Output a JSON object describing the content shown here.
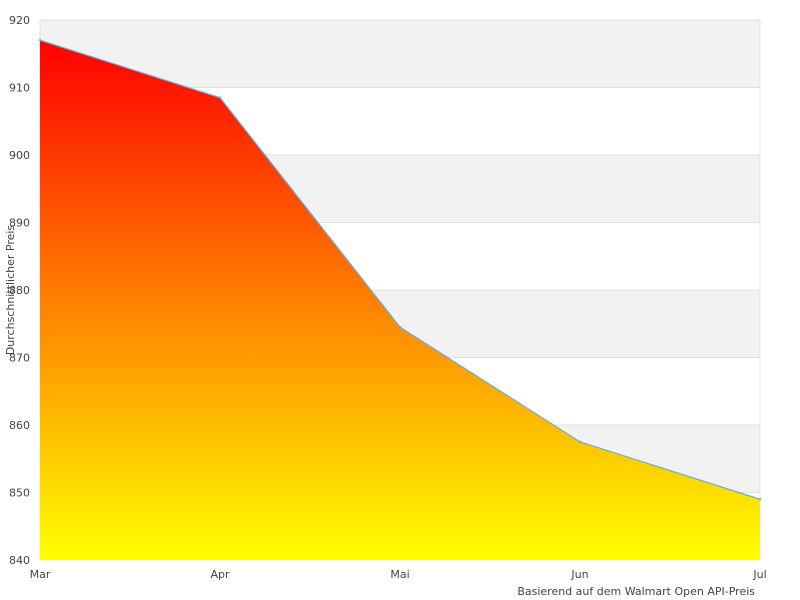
{
  "chart_data": {
    "type": "area",
    "x": [
      "Mar",
      "Apr",
      "Mai",
      "Jun",
      "Jul"
    ],
    "series": [
      {
        "values": [
          917,
          908.5,
          874.5,
          857.5,
          849
        ]
      }
    ],
    "title": "",
    "xlabel": "",
    "ylabel": "Durchschnittlicher Preis",
    "ylim": [
      840,
      920
    ],
    "yticks": [
      840,
      850,
      860,
      870,
      880,
      890,
      900,
      910,
      920
    ],
    "grid": true,
    "legend": "none",
    "note": "Basierend auf dem Walmart Open API-Preis"
  },
  "colors": {
    "band_fill": "#f2f2f2",
    "grid_line": "#e0e0e0",
    "line": "#6aaed8",
    "fill_top": "#ff0000",
    "fill_bottom": "#ffff00",
    "text": "#444444"
  }
}
